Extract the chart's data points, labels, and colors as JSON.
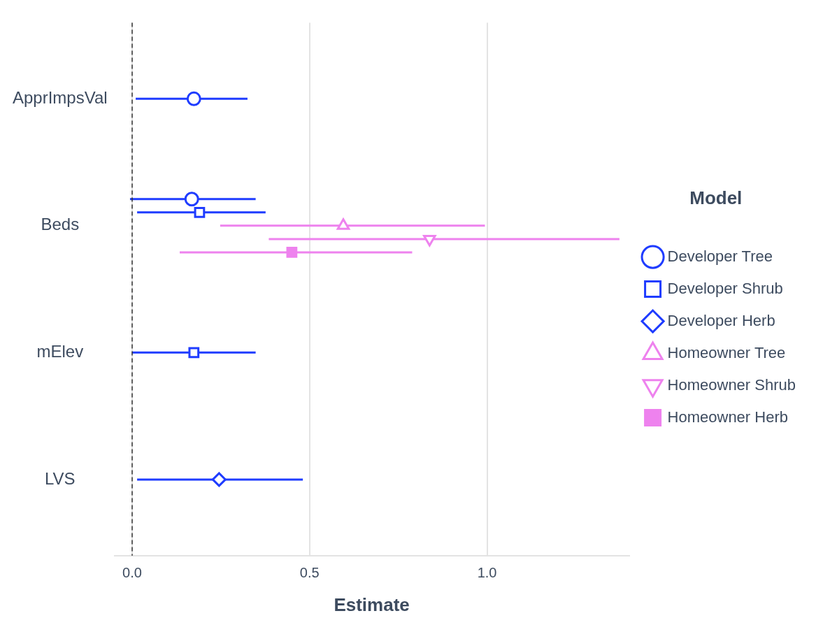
{
  "chart_data": {
    "type": "scatter",
    "orientation": "horizontal",
    "xlabel": "Estimate",
    "legend_title": "Model",
    "legend": "right",
    "grid": "x",
    "categories": [
      "ApprImpsVal",
      "Beds",
      "mElev",
      "LVS"
    ],
    "xlim": [
      -0.05,
      1.4
    ],
    "xticks": [
      {
        "value": 0,
        "label": "0.0"
      },
      {
        "value": 0.5,
        "label": "0.5"
      },
      {
        "value": 1,
        "label": "1.0"
      }
    ],
    "ref_lines": [
      {
        "axis": "x",
        "value": 0,
        "line_style": "dashed",
        "color": "#333333"
      }
    ],
    "series": [
      {
        "name": "Developer Tree",
        "color": "#1f3cff",
        "marker": "circle",
        "values": [
          0.174,
          0.168,
          null,
          null
        ],
        "errors": [
          [
            0.01,
            0.325
          ],
          [
            -0.006,
            0.348
          ],
          null,
          null
        ]
      },
      {
        "name": "Developer Shrub",
        "color": "#1f3cff",
        "marker": "square",
        "values": [
          null,
          0.19,
          0.174,
          null
        ],
        "errors": [
          null,
          [
            0.014,
            0.376
          ],
          [
            0.0,
            0.348
          ],
          null
        ]
      },
      {
        "name": "Developer Herb",
        "color": "#1f3cff",
        "marker": "diamond",
        "values": [
          null,
          null,
          null,
          0.245
        ],
        "errors": [
          null,
          null,
          null,
          [
            0.014,
            0.481
          ]
        ]
      },
      {
        "name": "Homeowner Tree",
        "color": "#ee82ee",
        "marker": "triangle",
        "values": [
          null,
          0.595,
          null,
          null
        ],
        "errors": [
          null,
          [
            0.248,
            0.994
          ],
          null,
          null
        ]
      },
      {
        "name": "Homeowner Shrub",
        "color": "#ee82ee",
        "marker": "triangle-down",
        "values": [
          null,
          0.838,
          null,
          null
        ],
        "errors": [
          null,
          [
            0.385,
            1.373
          ],
          null,
          null
        ]
      },
      {
        "name": "Homeowner Herb",
        "color": "#ee82ee",
        "marker": "square-filled",
        "values": [
          null,
          0.45,
          null,
          null
        ],
        "errors": [
          null,
          [
            0.134,
            0.789
          ],
          null,
          null
        ]
      }
    ]
  }
}
